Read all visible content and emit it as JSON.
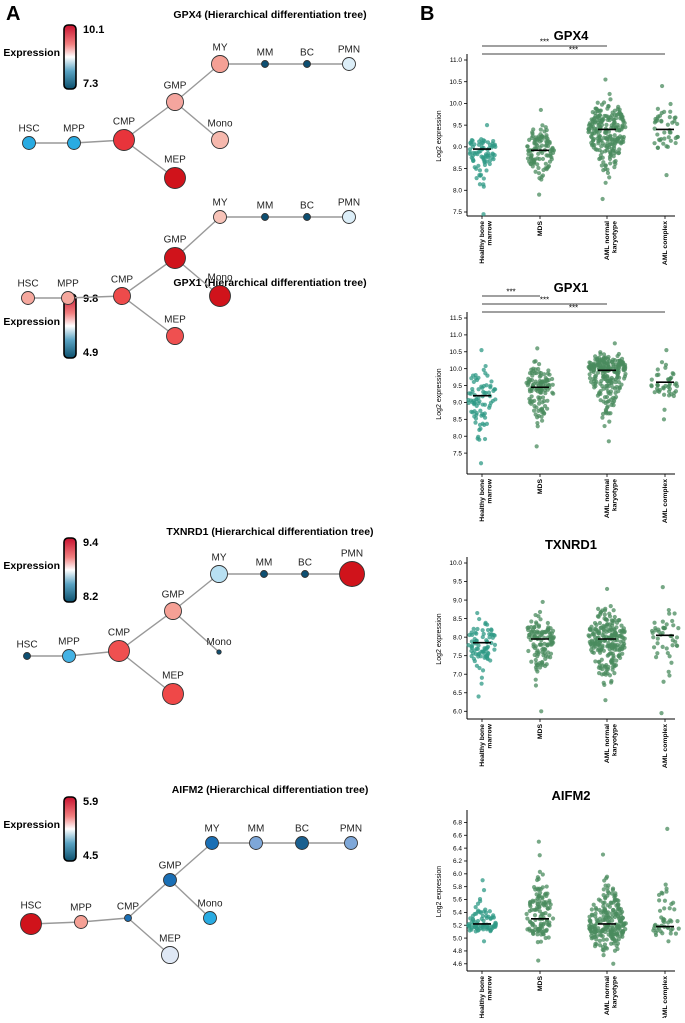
{
  "panels": {
    "a": {
      "label": "A",
      "expression_label": "Expression"
    },
    "b": {
      "label": "B",
      "ylabel": "Log2 expression",
      "sig_label": "***"
    }
  },
  "colors": {
    "high": "#c8102e",
    "mid_high": "#f28080",
    "white": "#ffffff",
    "mid_low": "#5aa3c3",
    "low": "#0b4f6c",
    "edge": "#999999",
    "point": "#4a8b5e",
    "point_teal": "#2f9a85",
    "axis": "#000000"
  },
  "groups": [
    "Healthy bone\nmarrow",
    "MDS",
    "AML normal\nkaryotype",
    "AML complex"
  ],
  "chart_data": [
    {
      "type": "tree",
      "gene": "GPX4",
      "title": "GPX4 (Hierarchical differentiation tree)",
      "legend_max": "10.1",
      "legend_min": "7.3",
      "nodes": [
        {
          "name": "HSC",
          "color": "#29abe2",
          "size": "small"
        },
        {
          "name": "MPP",
          "color": "#29abe2",
          "size": "small"
        },
        {
          "name": "CMP",
          "color": "#e8343b",
          "size": "large"
        },
        {
          "name": "GMP",
          "color": "#f4a59e",
          "size": "medium"
        },
        {
          "name": "MEP",
          "color": "#d0131b",
          "size": "large"
        },
        {
          "name": "MY",
          "color": "#f5a095",
          "size": "medium"
        },
        {
          "name": "Mono",
          "color": "#f6b8ad",
          "size": "medium"
        },
        {
          "name": "MM",
          "color": "#0d4f72",
          "size": "tiny"
        },
        {
          "name": "BC",
          "color": "#0d4f72",
          "size": "tiny"
        },
        {
          "name": "PMN",
          "color": "#dceef8",
          "size": "small"
        }
      ]
    },
    {
      "type": "strip",
      "gene": "GPX4",
      "title": "GPX4",
      "ylabel": "Log2 expression",
      "ylim": [
        7.5,
        11.0
      ],
      "yticks": [
        "7.5",
        "8.0",
        "8.5",
        "9.0",
        "9.5",
        "10.0",
        "10.5",
        "11.0"
      ],
      "medians": [
        8.95,
        8.92,
        9.4,
        9.4
      ],
      "n": [
        80,
        110,
        230,
        45
      ],
      "ranges": [
        [
          7.45,
          9.5
        ],
        [
          7.9,
          9.85
        ],
        [
          7.8,
          10.55
        ],
        [
          8.35,
          10.4
        ]
      ],
      "sig": [
        [
          "Healthy bone\nmarrow",
          "AML normal\nkaryotype",
          "***"
        ],
        [
          "Healthy bone\nmarrow",
          "AML complex",
          "***"
        ]
      ]
    },
    {
      "type": "tree",
      "gene": "GPX1",
      "title": "GPX1 (Hierarchical differentiation tree)",
      "legend_max": "9.8",
      "legend_min": "4.9",
      "nodes": [
        {
          "name": "HSC",
          "color": "#f6a89e",
          "size": "small"
        },
        {
          "name": "MPP",
          "color": "#f6a89e",
          "size": "small"
        },
        {
          "name": "CMP",
          "color": "#ee4b4b",
          "size": "medium"
        },
        {
          "name": "GMP",
          "color": "#d0131b",
          "size": "large"
        },
        {
          "name": "MEP",
          "color": "#ef5050",
          "size": "medium"
        },
        {
          "name": "MY",
          "color": "#f8c3b8",
          "size": "small"
        },
        {
          "name": "Mono",
          "color": "#d0131b",
          "size": "large"
        },
        {
          "name": "MM",
          "color": "#0d4f72",
          "size": "tiny"
        },
        {
          "name": "BC",
          "color": "#0d4f72",
          "size": "tiny"
        },
        {
          "name": "PMN",
          "color": "#dceef8",
          "size": "small"
        }
      ]
    },
    {
      "type": "strip",
      "gene": "GPX1",
      "title": "GPX1",
      "ylabel": "Log2 expression",
      "ylim": [
        7.0,
        11.5
      ],
      "yticks": [
        "7.5",
        "8.0",
        "8.5",
        "9.0",
        "9.5",
        "10.0",
        "10.5",
        "11.0",
        "11.5"
      ],
      "medians": [
        9.2,
        9.45,
        9.95,
        9.6
      ],
      "n": [
        80,
        120,
        230,
        45
      ],
      "ranges": [
        [
          7.2,
          10.55
        ],
        [
          7.7,
          10.6
        ],
        [
          7.85,
          10.75
        ],
        [
          8.5,
          10.55
        ]
      ],
      "sig": [
        [
          "Healthy bone\nmarrow",
          "MDS",
          "***"
        ],
        [
          "Healthy bone\nmarrow",
          "AML normal\nkaryotype",
          "***"
        ],
        [
          "Healthy bone\nmarrow",
          "AML complex",
          "***"
        ]
      ]
    },
    {
      "type": "tree",
      "gene": "TXNRD1",
      "title": "TXNRD1 (Hierarchical differentiation tree)",
      "legend_max": "9.4",
      "legend_min": "8.2",
      "nodes": [
        {
          "name": "HSC",
          "color": "#0d4f72",
          "size": "tiny"
        },
        {
          "name": "MPP",
          "color": "#44b2e4",
          "size": "small"
        },
        {
          "name": "CMP",
          "color": "#ef5050",
          "size": "large"
        },
        {
          "name": "GMP",
          "color": "#f5a095",
          "size": "medium"
        },
        {
          "name": "MEP",
          "color": "#ef4848",
          "size": "large"
        },
        {
          "name": "MY",
          "color": "#b8e0f2",
          "size": "medium"
        },
        {
          "name": "Mono",
          "color": "#0d4f72",
          "size": "dot"
        },
        {
          "name": "MM",
          "color": "#0d4f72",
          "size": "tiny"
        },
        {
          "name": "BC",
          "color": "#0d4f72",
          "size": "tiny"
        },
        {
          "name": "PMN",
          "color": "#d0131b",
          "size": "xlarge"
        }
      ]
    },
    {
      "type": "strip",
      "gene": "TXNRD1",
      "title": "TXNRD1",
      "ylabel": "Log2 expression",
      "ylim": [
        5.9,
        10.0
      ],
      "yticks": [
        "6.0",
        "6.5",
        "7.0",
        "7.5",
        "8.0",
        "8.5",
        "9.0",
        "9.5",
        "10.0"
      ],
      "medians": [
        7.85,
        7.95,
        7.95,
        8.05
      ],
      "n": [
        80,
        120,
        230,
        45
      ],
      "ranges": [
        [
          6.4,
          8.65
        ],
        [
          6.0,
          8.95
        ],
        [
          6.3,
          9.3
        ],
        [
          5.95,
          9.35
        ]
      ],
      "sig": []
    },
    {
      "type": "tree",
      "gene": "AIFM2",
      "title": "AIFM2 (Hierarchical differentiation tree)",
      "legend_max": "5.9",
      "legend_min": "4.5",
      "nodes": [
        {
          "name": "HSC",
          "color": "#d0131b",
          "size": "large"
        },
        {
          "name": "MPP",
          "color": "#f5a095",
          "size": "small"
        },
        {
          "name": "CMP",
          "color": "#1a6fb5",
          "size": "tiny"
        },
        {
          "name": "GMP",
          "color": "#1a6fb5",
          "size": "small"
        },
        {
          "name": "MEP",
          "color": "#dfe8f5",
          "size": "medium"
        },
        {
          "name": "MY",
          "color": "#1a6fb5",
          "size": "small"
        },
        {
          "name": "Mono",
          "color": "#29abe2",
          "size": "small"
        },
        {
          "name": "MM",
          "color": "#7ea7d8",
          "size": "small"
        },
        {
          "name": "BC",
          "color": "#1a6090",
          "size": "small"
        },
        {
          "name": "PMN",
          "color": "#7ea7d8",
          "size": "small"
        }
      ]
    },
    {
      "type": "strip",
      "gene": "AIFM2",
      "title": "AIFM2",
      "ylabel": "Log2 expression",
      "ylim": [
        4.55,
        6.9
      ],
      "yticks": [
        "4.6",
        "4.8",
        "5.0",
        "5.2",
        "5.4",
        "5.6",
        "5.8",
        "6.0",
        "6.2",
        "6.4",
        "6.6",
        "6.8"
      ],
      "medians": [
        5.22,
        5.3,
        5.22,
        5.18
      ],
      "n": [
        80,
        120,
        230,
        45
      ],
      "ranges": [
        [
          4.95,
          5.9
        ],
        [
          4.65,
          6.5
        ],
        [
          4.6,
          6.3
        ],
        [
          4.95,
          6.7
        ]
      ],
      "sig": []
    }
  ]
}
